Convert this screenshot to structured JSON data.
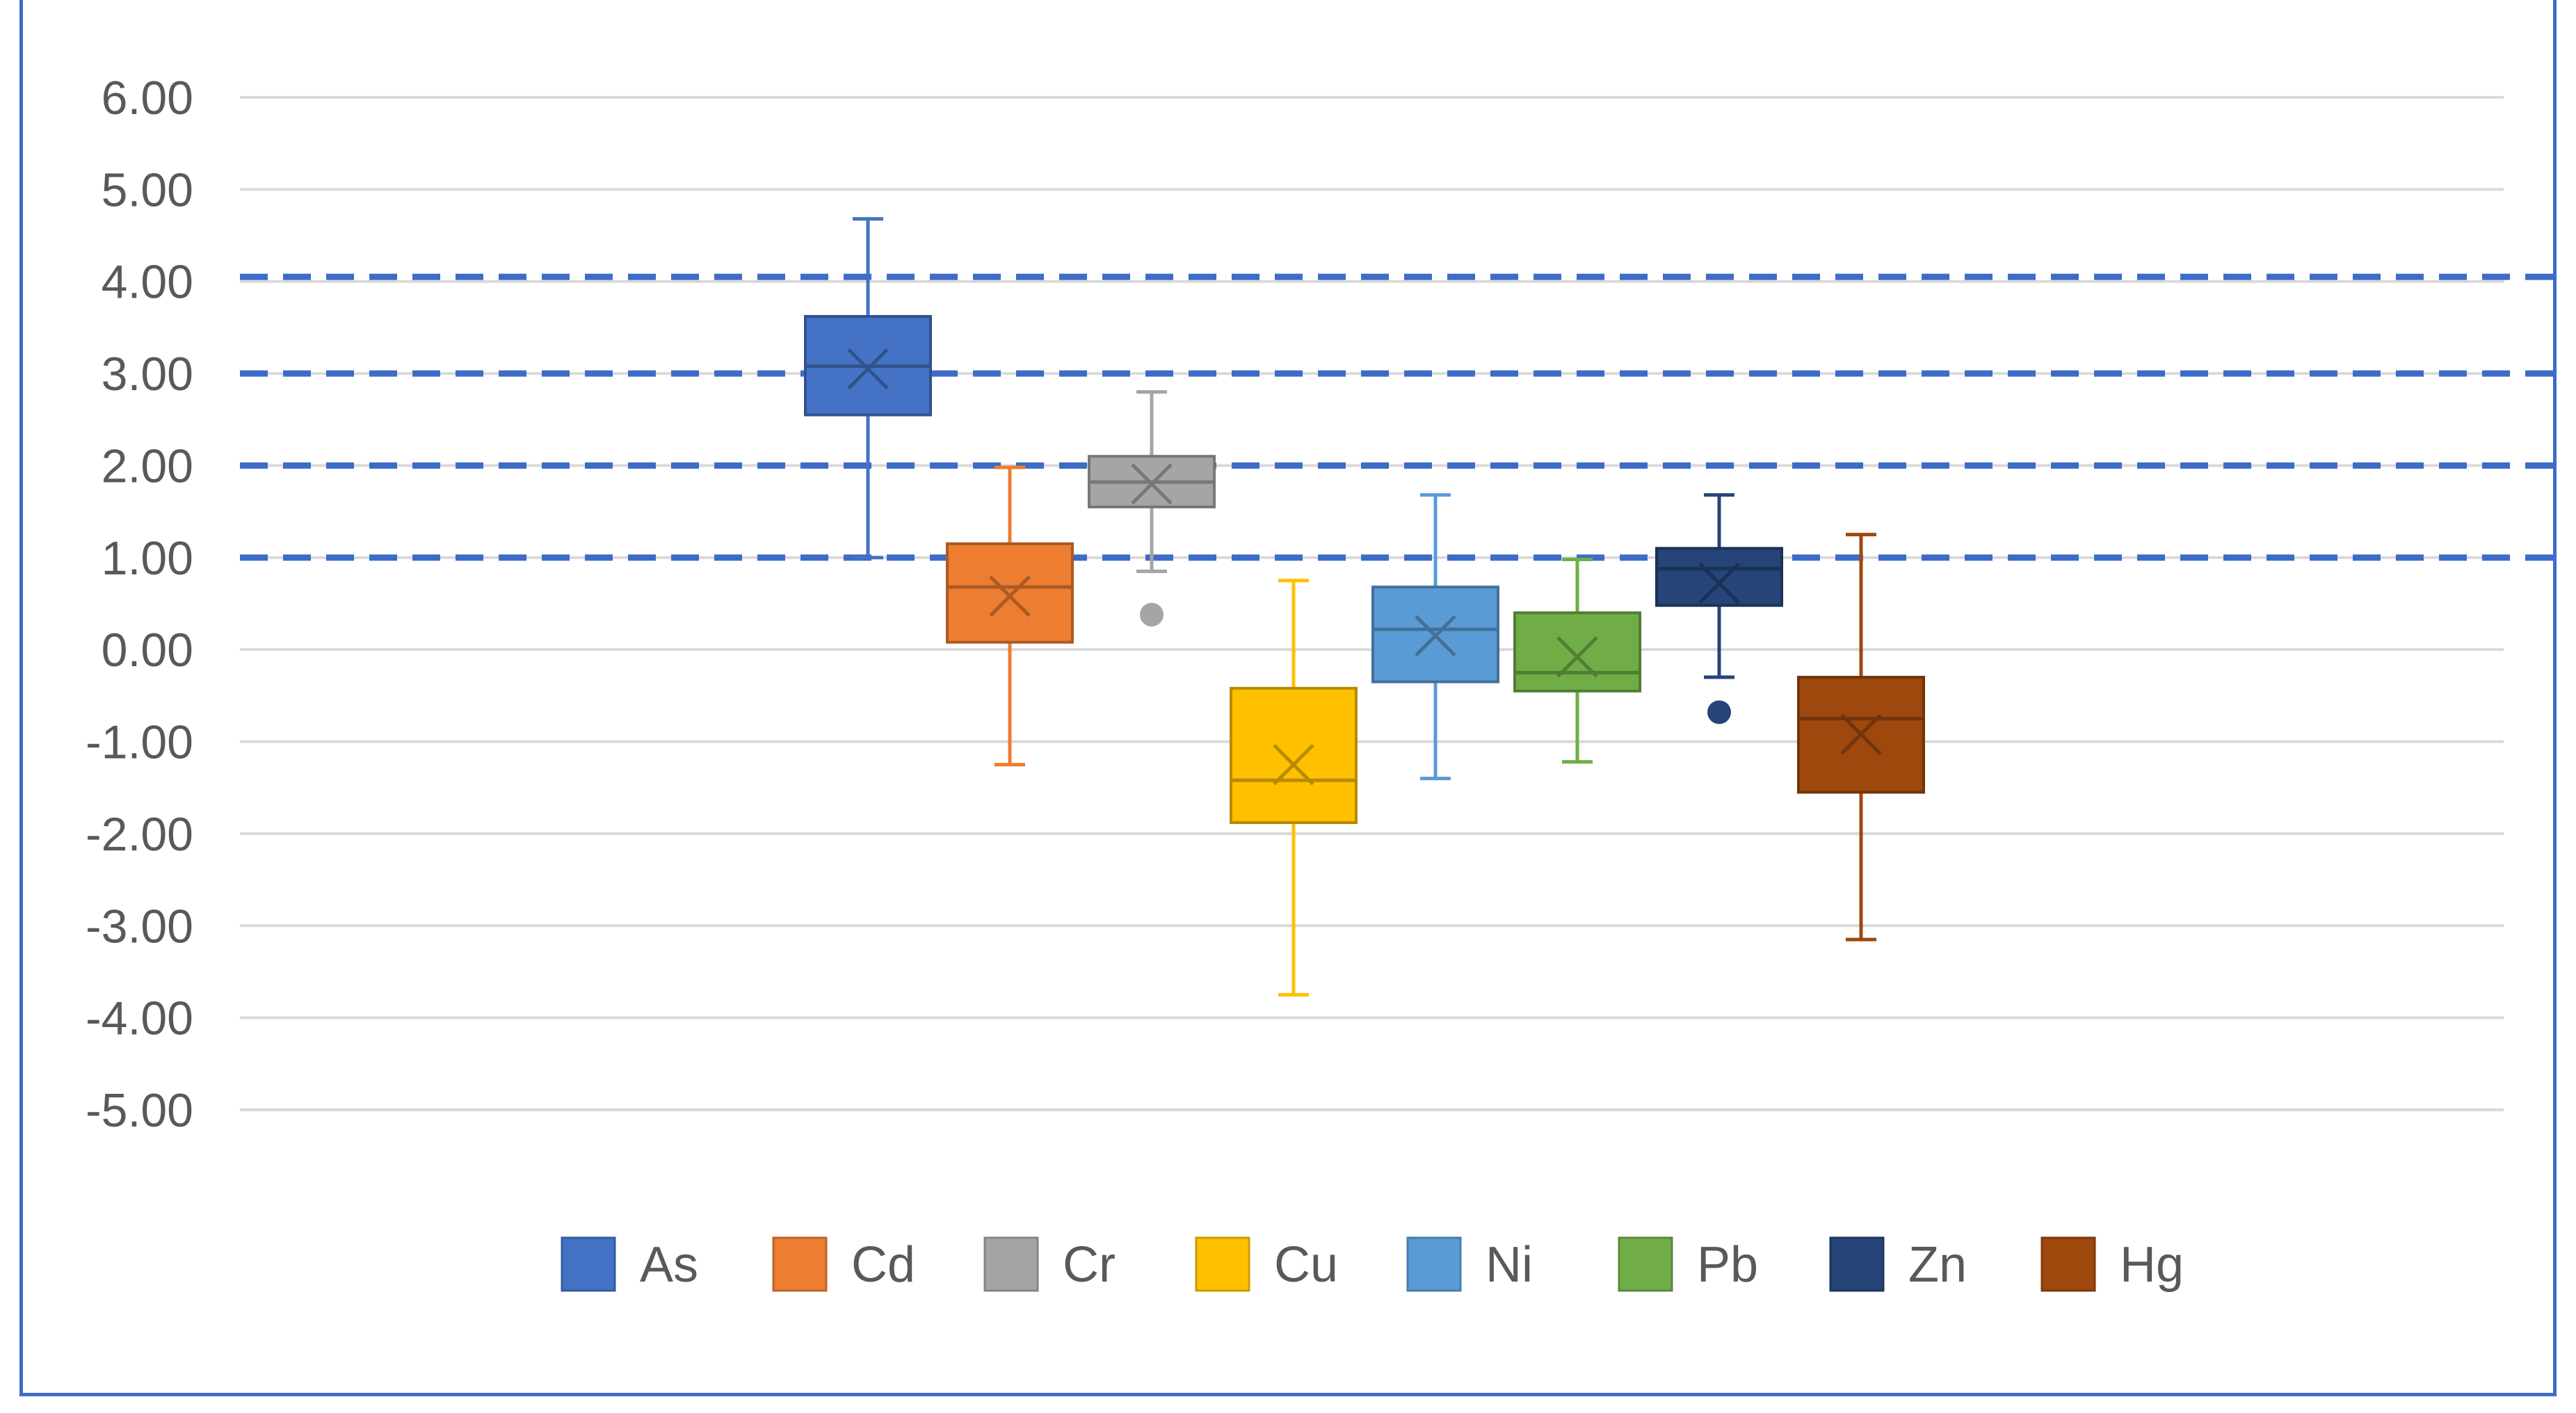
{
  "chart_data": {
    "type": "box",
    "title": "",
    "xlabel": "",
    "ylabel": "",
    "ylim": [
      -5,
      6
    ],
    "yticks": [
      6,
      5,
      4,
      3,
      2,
      1,
      0,
      -1,
      -2,
      -3,
      -4,
      -5
    ],
    "ytick_labels": [
      "6.00",
      "5.00",
      "4.00",
      "3.00",
      "2.00",
      "1.00",
      "0.00",
      "-1.00",
      "-2.00",
      "-3.00",
      "-4.00",
      "-5.00"
    ],
    "grid": true,
    "reference_lines": [
      4.05,
      3.0,
      2.0,
      1.0
    ],
    "legend_position": "bottom",
    "series": [
      {
        "name": "As",
        "color": "#4472c4",
        "min": 1.0,
        "q1": 2.55,
        "median": 3.08,
        "q3": 3.62,
        "max": 4.68,
        "mean": 3.05,
        "outliers": []
      },
      {
        "name": "Cd",
        "color": "#ed7d31",
        "min": -1.25,
        "q1": 0.08,
        "median": 0.68,
        "q3": 1.15,
        "max": 1.98,
        "mean": 0.58,
        "outliers": []
      },
      {
        "name": "Cr",
        "color": "#a5a5a5",
        "min": 0.85,
        "q1": 1.55,
        "median": 1.82,
        "q3": 2.1,
        "max": 2.8,
        "mean": 1.8,
        "outliers": [
          0.38
        ]
      },
      {
        "name": "Cu",
        "color": "#ffc000",
        "min": -3.75,
        "q1": -1.88,
        "median": -1.42,
        "q3": -0.42,
        "max": 0.75,
        "mean": -1.25,
        "outliers": []
      },
      {
        "name": "Ni",
        "color": "#5b9bd5",
        "min": -1.4,
        "q1": -0.35,
        "median": 0.22,
        "q3": 0.68,
        "max": 1.68,
        "mean": 0.15,
        "outliers": []
      },
      {
        "name": "Pb",
        "color": "#70ad47",
        "min": -1.22,
        "q1": -0.45,
        "median": -0.25,
        "q3": 0.4,
        "max": 0.98,
        "mean": -0.08,
        "outliers": []
      },
      {
        "name": "Zn",
        "color": "#264478",
        "min": -0.3,
        "q1": 0.48,
        "median": 0.88,
        "q3": 1.1,
        "max": 1.68,
        "mean": 0.72,
        "outliers": [
          -0.68
        ]
      },
      {
        "name": "Hg",
        "color": "#9e480e",
        "min": -3.15,
        "q1": -1.55,
        "median": -0.75,
        "q3": -0.3,
        "max": 1.25,
        "mean": -0.92,
        "outliers": []
      }
    ]
  }
}
